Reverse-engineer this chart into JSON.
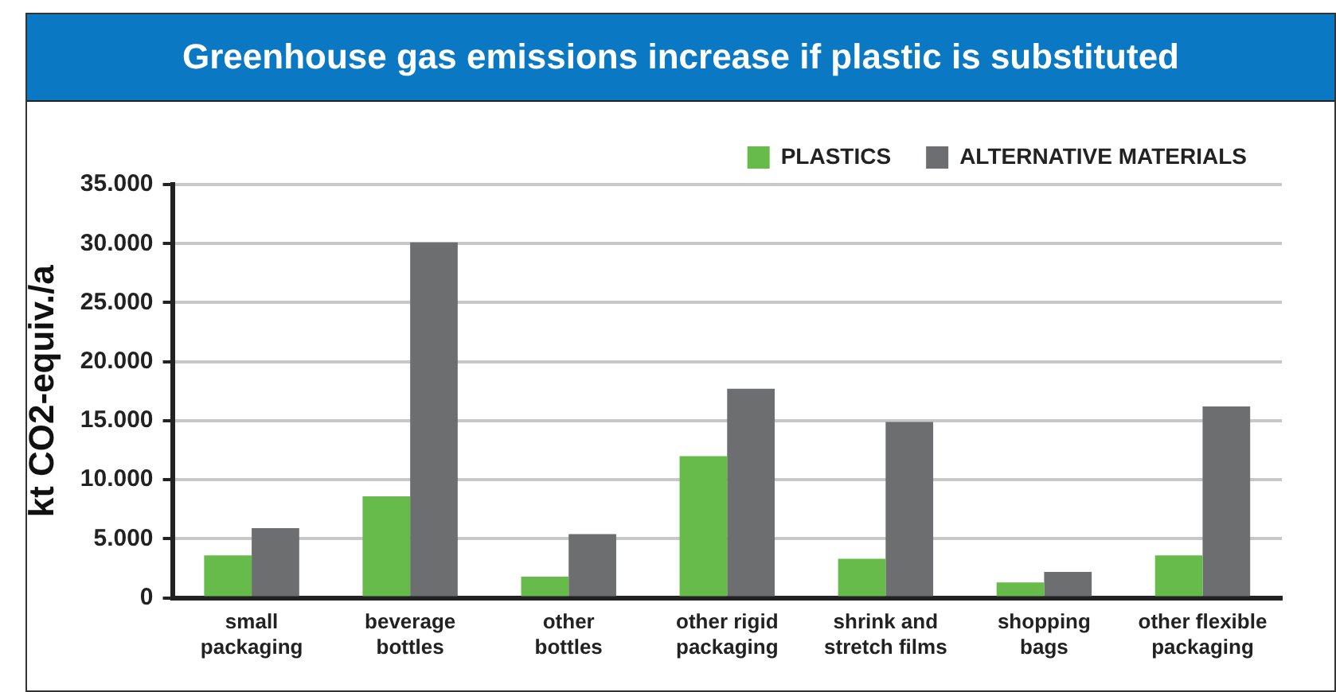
{
  "chart_data": {
    "type": "bar",
    "title": "Greenhouse gas emissions increase if plastic is substituted",
    "ylabel": "kt CO2-equiv./a",
    "categories": [
      "small packaging",
      "beverage bottles",
      "other bottles",
      "other rigid packaging",
      "shrink and stretch films",
      "shopping bags",
      "other flexible packaging"
    ],
    "series": [
      {
        "name": "PLASTICS",
        "color": "#66bb4a",
        "values": [
          3600,
          8600,
          1800,
          12000,
          3300,
          1300,
          3600
        ]
      },
      {
        "name": "ALTERNATIVE MATERIALS",
        "color": "#6d6e70",
        "values": [
          5900,
          30100,
          5400,
          17700,
          14900,
          2200,
          16200
        ]
      }
    ],
    "ylim": [
      0,
      35000
    ],
    "yticks": [
      {
        "value": 0,
        "label": "0"
      },
      {
        "value": 5000,
        "label": "5.000"
      },
      {
        "value": 10000,
        "label": "10.000"
      },
      {
        "value": 15000,
        "label": "15.000"
      },
      {
        "value": 20000,
        "label": "20.000"
      },
      {
        "value": 25000,
        "label": "25.000"
      },
      {
        "value": 30000,
        "label": "30.000"
      },
      {
        "value": 35000,
        "label": "35.000"
      }
    ],
    "grid": "y",
    "legend": "top right"
  }
}
